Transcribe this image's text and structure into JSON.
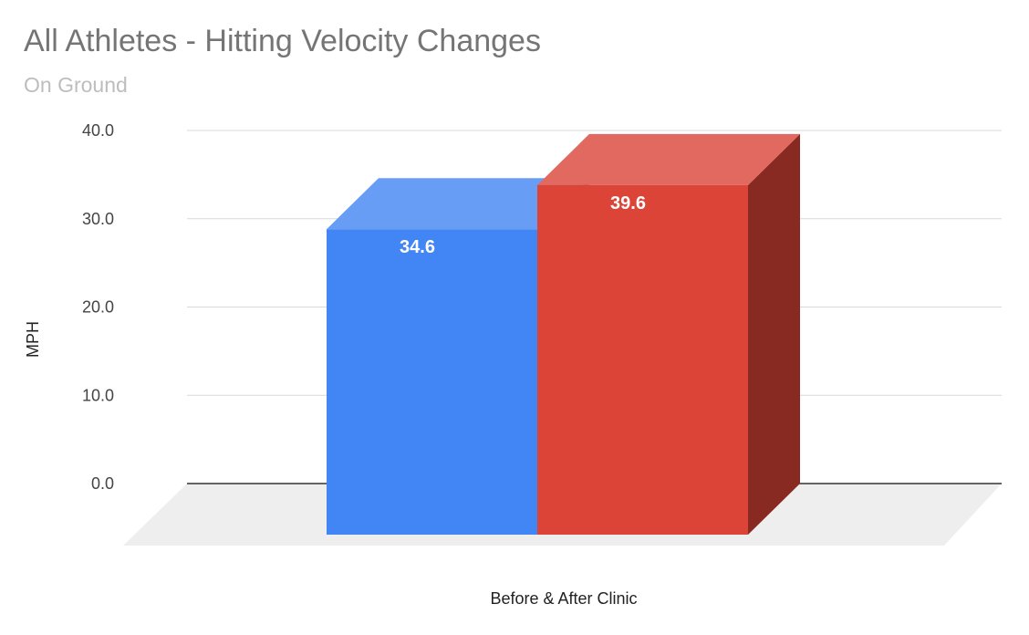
{
  "chart_data": {
    "type": "bar",
    "title": "All Athletes - Hitting Velocity Changes",
    "subtitle": "On Ground",
    "xlabel": "Before & After Clinic",
    "ylabel": "MPH",
    "ylim": [
      0,
      40
    ],
    "yticks": [
      "0.0",
      "10.0",
      "20.0",
      "30.0",
      "40.0"
    ],
    "grid": true,
    "legend": "none",
    "series": [
      {
        "value": 34.6,
        "label": "34.6",
        "color": "#4285f4"
      },
      {
        "value": 39.6,
        "label": "39.6",
        "color": "#db4437"
      }
    ]
  }
}
